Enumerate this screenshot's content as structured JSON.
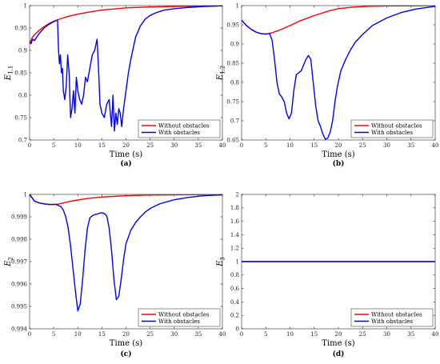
{
  "chart_data": [
    {
      "id": "a",
      "type": "line",
      "caption": "(a)",
      "xlabel": "Time (s)",
      "ylabel": "E",
      "ylabel_sub": "1,1",
      "xlim": [
        0,
        40
      ],
      "ylim": [
        0.7,
        1
      ],
      "xticks": [
        0,
        5,
        10,
        15,
        20,
        25,
        30,
        35,
        40
      ],
      "yticks": [
        0.7,
        0.75,
        0.8,
        0.85,
        0.9,
        0.95,
        1
      ],
      "legend": "bottom-right",
      "grid": false,
      "series": [
        {
          "name": "Without obstacles",
          "color": "#ff0000",
          "x": [
            0,
            0.5,
            1,
            2,
            3,
            4,
            5,
            6,
            8,
            10,
            12,
            15,
            18,
            20,
            25,
            30,
            35,
            40
          ],
          "y": [
            0.915,
            0.928,
            0.935,
            0.945,
            0.953,
            0.96,
            0.965,
            0.969,
            0.976,
            0.981,
            0.985,
            0.99,
            0.993,
            0.995,
            0.997,
            0.998,
            0.999,
            0.9995
          ]
        },
        {
          "name": "With obstacles",
          "color": "#0000ff",
          "x": [
            0,
            0.3,
            0.6,
            1,
            2,
            3,
            4,
            5,
            5.8,
            6.0,
            6.2,
            6.4,
            6.6,
            6.8,
            7.0,
            7.3,
            7.6,
            7.9,
            8.2,
            8.5,
            8.8,
            9.1,
            9.4,
            9.7,
            10.0,
            10.4,
            10.8,
            11.2,
            11.6,
            12.0,
            12.5,
            13.0,
            13.5,
            14.0,
            14.3,
            14.6,
            15.0,
            15.5,
            16.0,
            16.5,
            17.0,
            17.3,
            17.6,
            17.9,
            18.2,
            18.5,
            18.8,
            19.1,
            19.5,
            20.0,
            20.5,
            21.0,
            22.0,
            23.0,
            24.0,
            25.0,
            26.0,
            27.0,
            28.0,
            30.0,
            33.0,
            36.0,
            40.0
          ],
          "y": [
            0.92,
            0.915,
            0.925,
            0.922,
            0.938,
            0.95,
            0.958,
            0.964,
            0.968,
            0.9,
            0.87,
            0.89,
            0.85,
            0.86,
            0.81,
            0.79,
            0.82,
            0.89,
            0.85,
            0.75,
            0.77,
            0.81,
            0.76,
            0.84,
            0.81,
            0.79,
            0.78,
            0.8,
            0.84,
            0.83,
            0.86,
            0.89,
            0.9,
            0.925,
            0.86,
            0.78,
            0.76,
            0.75,
            0.78,
            0.79,
            0.73,
            0.8,
            0.72,
            0.76,
            0.735,
            0.77,
            0.76,
            0.73,
            0.77,
            0.81,
            0.85,
            0.88,
            0.93,
            0.955,
            0.97,
            0.978,
            0.983,
            0.987,
            0.99,
            0.993,
            0.996,
            0.998,
            0.9995
          ]
        }
      ]
    },
    {
      "id": "b",
      "type": "line",
      "caption": "(b)",
      "xlabel": "Time (s)",
      "ylabel": "E",
      "ylabel_sub": "1,2",
      "xlim": [
        0,
        40
      ],
      "ylim": [
        0.65,
        1
      ],
      "xticks": [
        0,
        5,
        10,
        15,
        20,
        25,
        30,
        35,
        40
      ],
      "yticks": [
        0.65,
        0.7,
        0.75,
        0.8,
        0.85,
        0.9,
        0.95,
        1
      ],
      "legend": "bottom-right",
      "grid": false,
      "series": [
        {
          "name": "Without obstacles",
          "color": "#ff0000",
          "x": [
            0,
            1,
            2,
            3,
            4,
            5,
            6,
            8,
            10,
            12,
            15,
            18,
            20,
            23,
            26,
            30,
            35,
            40
          ],
          "y": [
            0.962,
            0.948,
            0.938,
            0.931,
            0.927,
            0.926,
            0.928,
            0.937,
            0.948,
            0.96,
            0.974,
            0.986,
            0.992,
            0.996,
            0.998,
            0.999,
            0.9995,
            1.0
          ]
        },
        {
          "name": "With obstacles",
          "color": "#0000ff",
          "x": [
            0,
            1,
            2,
            3,
            4,
            5,
            5.8,
            6.3,
            6.8,
            7.3,
            7.8,
            8.3,
            8.8,
            9.3,
            9.8,
            10.3,
            10.8,
            11.3,
            11.8,
            12.3,
            12.8,
            13.3,
            13.8,
            14.3,
            14.8,
            15.3,
            15.8,
            16.3,
            16.8,
            17.3,
            17.8,
            18.3,
            18.8,
            19.3,
            19.8,
            20.5,
            21.5,
            22.5,
            23.5,
            25,
            27,
            30,
            33,
            36,
            40
          ],
          "y": [
            0.962,
            0.948,
            0.938,
            0.931,
            0.927,
            0.926,
            0.927,
            0.91,
            0.86,
            0.8,
            0.77,
            0.762,
            0.75,
            0.72,
            0.705,
            0.72,
            0.78,
            0.82,
            0.825,
            0.83,
            0.845,
            0.86,
            0.87,
            0.86,
            0.8,
            0.74,
            0.7,
            0.685,
            0.665,
            0.652,
            0.655,
            0.67,
            0.7,
            0.75,
            0.79,
            0.83,
            0.86,
            0.885,
            0.905,
            0.925,
            0.948,
            0.968,
            0.982,
            0.991,
            0.998
          ]
        }
      ]
    },
    {
      "id": "c",
      "type": "line",
      "caption": "(c)",
      "xlabel": "Time (s)",
      "ylabel": "E",
      "ylabel_sub": "2",
      "xlim": [
        0,
        40
      ],
      "ylim": [
        0.994,
        1
      ],
      "xticks": [
        0,
        5,
        10,
        15,
        20,
        25,
        30,
        35,
        40
      ],
      "yticks": [
        0.994,
        0.995,
        0.996,
        0.997,
        0.998,
        0.999,
        1
      ],
      "legend": "bottom-right",
      "grid": false,
      "series": [
        {
          "name": "Without obstacles",
          "color": "#ff0000",
          "x": [
            0,
            0.5,
            1,
            2,
            3,
            4,
            5,
            6,
            7,
            8,
            10,
            12,
            15,
            18,
            20,
            25,
            30,
            35,
            40
          ],
          "y": [
            1.0,
            0.99985,
            0.9997,
            0.99962,
            0.99958,
            0.99955,
            0.99955,
            0.99957,
            0.99962,
            0.99967,
            0.99975,
            0.99982,
            0.99988,
            0.99992,
            0.99994,
            0.99997,
            0.99998,
            0.99999,
            1.0
          ]
        },
        {
          "name": "With obstacles",
          "color": "#0000ff",
          "x": [
            0,
            0.5,
            1,
            2,
            3,
            4,
            5,
            5.5,
            6,
            6.5,
            7,
            7.5,
            8,
            8.5,
            9,
            9.5,
            10,
            10.5,
            11,
            11.5,
            12,
            12.5,
            13,
            13.5,
            14,
            14.5,
            15,
            15.5,
            16,
            16.5,
            17,
            17.5,
            18,
            18.5,
            19,
            19.5,
            20,
            21,
            22,
            23,
            24,
            25,
            27,
            30,
            33,
            36,
            40
          ],
          "y": [
            1.0,
            0.99985,
            0.9997,
            0.99962,
            0.99958,
            0.99955,
            0.99955,
            0.99955,
            0.9995,
            0.99946,
            0.9993,
            0.999,
            0.9985,
            0.9977,
            0.9967,
            0.9957,
            0.9948,
            0.9951,
            0.9962,
            0.9975,
            0.9985,
            0.99895,
            0.99905,
            0.9991,
            0.99912,
            0.99916,
            0.99918,
            0.99914,
            0.99905,
            0.9985,
            0.9975,
            0.9962,
            0.9953,
            0.99545,
            0.9962,
            0.9971,
            0.9978,
            0.9984,
            0.99875,
            0.999,
            0.99921,
            0.99937,
            0.99958,
            0.99976,
            0.99987,
            0.99994,
            0.99998
          ]
        }
      ]
    },
    {
      "id": "d",
      "type": "line",
      "caption": "(d)",
      "xlabel": "Time (s)",
      "ylabel": "E",
      "ylabel_sub": "3",
      "xlim": [
        0,
        40
      ],
      "ylim": [
        0,
        2
      ],
      "xticks": [
        0,
        5,
        10,
        15,
        20,
        25,
        30,
        35,
        40
      ],
      "yticks": [
        0,
        0.2,
        0.4,
        0.6,
        0.8,
        1,
        1.2,
        1.4,
        1.6,
        1.8,
        2
      ],
      "legend": "bottom-right",
      "grid": false,
      "series": [
        {
          "name": "Without obstacles",
          "color": "#ff0000",
          "x": [
            0,
            40
          ],
          "y": [
            1,
            1
          ]
        },
        {
          "name": "With obstacles",
          "color": "#0000ff",
          "x": [
            0,
            40
          ],
          "y": [
            1,
            1
          ]
        }
      ]
    }
  ]
}
